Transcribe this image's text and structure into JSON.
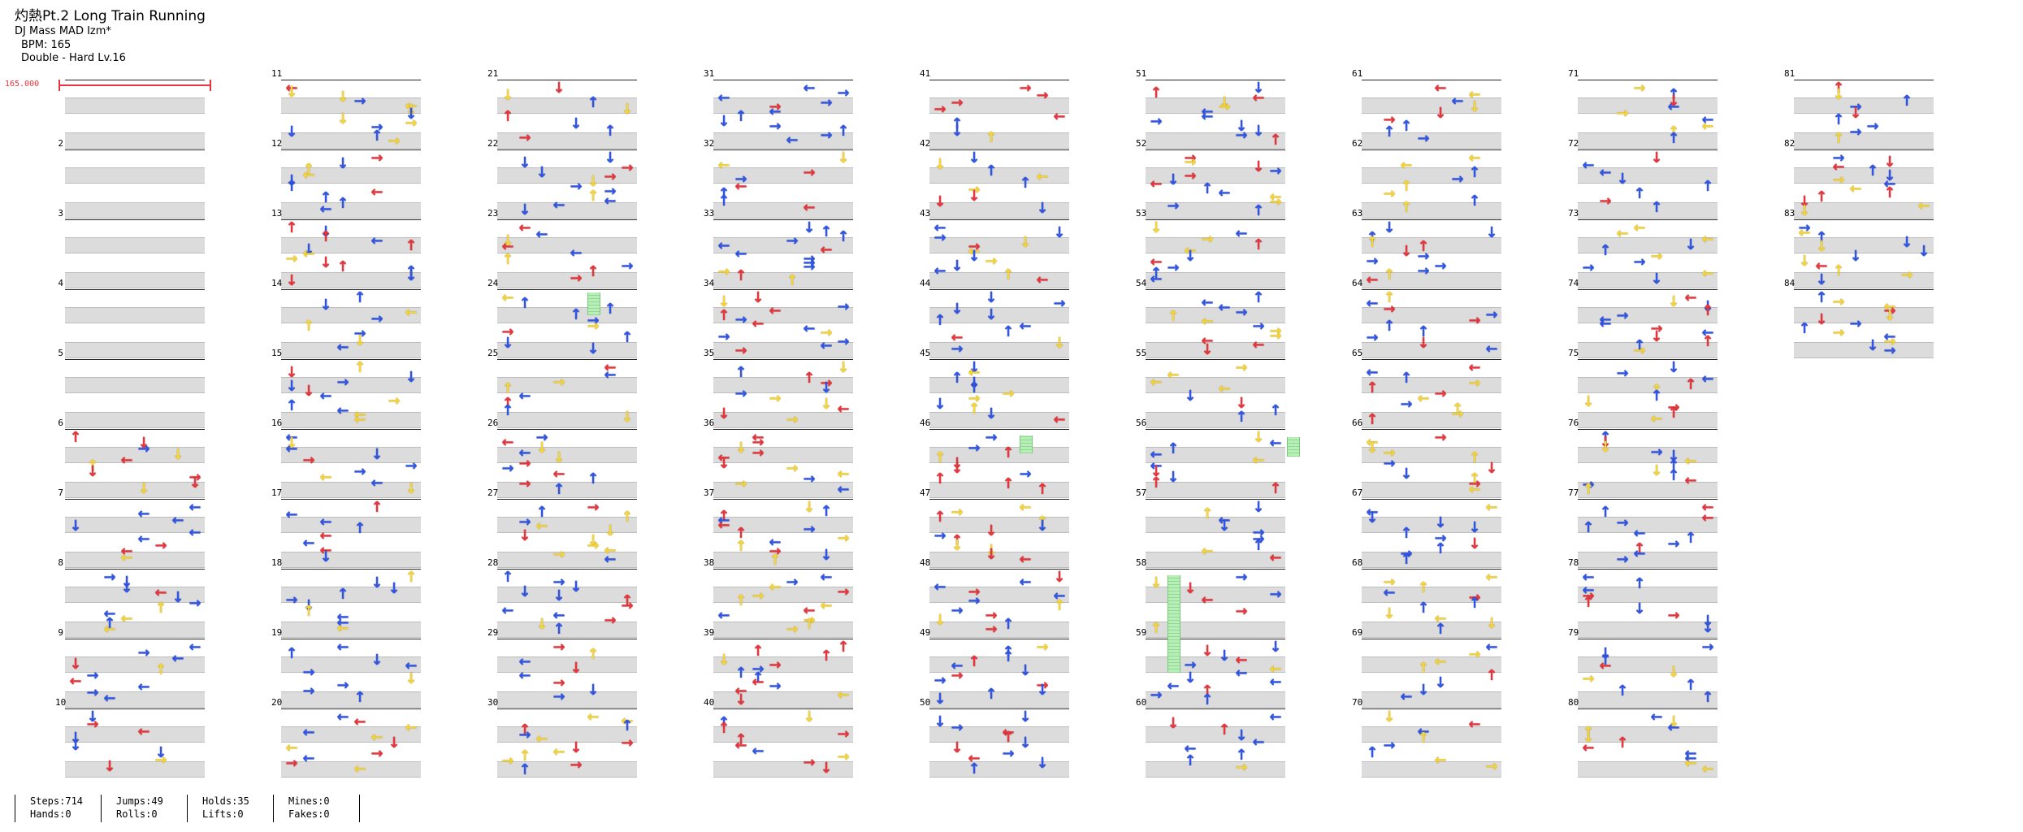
{
  "header": {
    "title": "灼熱Pt.2 Long Train Running",
    "artist": "DJ Mass MAD Izm*",
    "bpm": "BPM: 165",
    "difficulty": "Double - Hard  Lv.16"
  },
  "bpm_change": {
    "label": "165.000"
  },
  "stats": {
    "steps": "Steps:714",
    "hands": "Hands:0",
    "jumps": "Jumps:49",
    "rolls": "Rolls:0",
    "holds": "Holds:35",
    "lifts": "Lifts:0",
    "mines": "Mines:0",
    "fakes": "Fakes:0"
  },
  "colors": {
    "red": "#e8343c",
    "blue": "#2f55e6",
    "yellow": "#f4d53a",
    "purple": "#b040f0",
    "green": "#6ed66e"
  },
  "icon_names": [
    "arrow-left-icon",
    "arrow-down-icon",
    "arrow-up-icon",
    "arrow-right-icon",
    "hold-note-icon"
  ],
  "columns": [
    {
      "measures": [
        "",
        "2",
        "3",
        "4",
        "5",
        "6",
        "7",
        "8",
        "9",
        "10"
      ]
    },
    {
      "measures": [
        "11",
        "12",
        "13",
        "14",
        "15",
        "16",
        "17",
        "18",
        "19",
        "20"
      ]
    },
    {
      "measures": [
        "21",
        "22",
        "23",
        "24",
        "25",
        "26",
        "27",
        "28",
        "29",
        "30"
      ]
    },
    {
      "measures": [
        "31",
        "32",
        "33",
        "34",
        "35",
        "36",
        "37",
        "38",
        "39",
        "40"
      ]
    },
    {
      "measures": [
        "41",
        "42",
        "43",
        "44",
        "45",
        "46",
        "47",
        "48",
        "49",
        "50"
      ]
    },
    {
      "measures": [
        "51",
        "52",
        "53",
        "54",
        "55",
        "56",
        "57",
        "58",
        "59",
        "60"
      ]
    },
    {
      "measures": [
        "61",
        "62",
        "63",
        "64",
        "65",
        "66",
        "67",
        "68",
        "69",
        "70"
      ]
    },
    {
      "measures": [
        "71",
        "72",
        "73",
        "74",
        "75",
        "76",
        "77",
        "78",
        "79",
        "80"
      ]
    },
    {
      "measures": [
        "81",
        "82",
        "83",
        "84"
      ]
    }
  ]
}
